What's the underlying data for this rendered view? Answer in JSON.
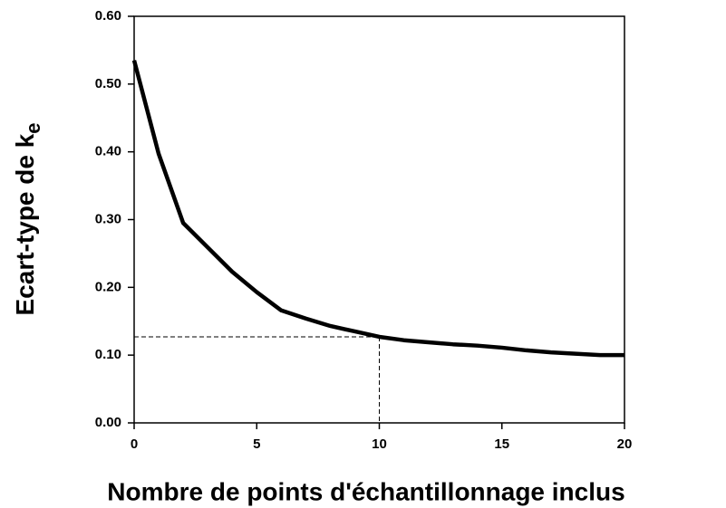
{
  "chart_data": {
    "type": "line",
    "xlabel": "Nombre de points d'échantillonnage inclus",
    "ylabel": "Ecart-type de k",
    "ylabel_subscript": "e",
    "x": [
      0,
      1,
      2,
      3,
      4,
      5,
      6,
      7,
      8,
      9,
      10,
      11,
      12,
      13,
      14,
      15,
      16,
      17,
      18,
      19,
      20
    ],
    "series": [
      {
        "color": "#000000",
        "values": [
          0.535,
          0.397,
          0.295,
          0.259,
          0.223,
          0.193,
          0.166,
          0.154,
          0.143,
          0.135,
          0.127,
          0.122,
          0.119,
          0.116,
          0.114,
          0.111,
          0.107,
          0.104,
          0.102,
          0.1,
          0.1
        ]
      }
    ],
    "reference": {
      "x": 10,
      "y": 0.127
    },
    "xlim": [
      0,
      20
    ],
    "xticks": [
      0,
      5,
      10,
      15,
      20
    ],
    "ylim": [
      0,
      0.6
    ],
    "yticks": [
      {
        "value": 0,
        "label": "0.00"
      },
      {
        "value": 0.1,
        "label": "0.10"
      },
      {
        "value": 0.2,
        "label": "0.20"
      },
      {
        "value": 0.3,
        "label": "0.30"
      },
      {
        "value": 0.4,
        "label": "0.40"
      },
      {
        "value": 0.5,
        "label": "0.50"
      },
      {
        "value": 0.6,
        "label": "0.60"
      }
    ]
  }
}
